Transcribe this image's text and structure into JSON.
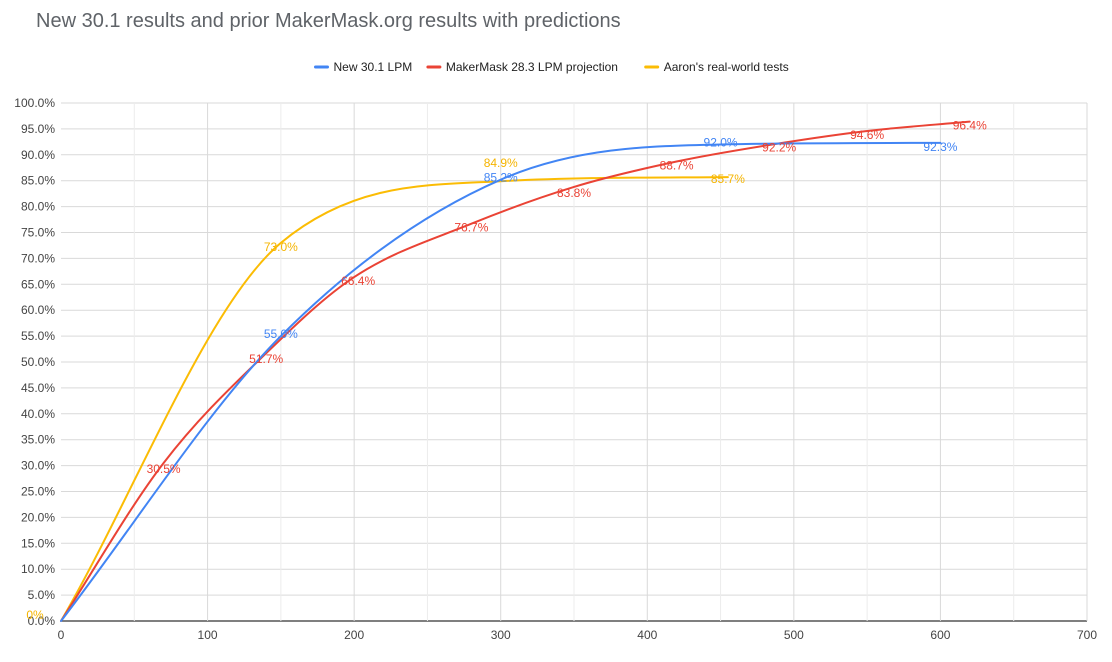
{
  "chart_data": {
    "type": "line",
    "title": "New 30.1 results and prior MakerMask.org results with predictions",
    "xlabel": "",
    "ylabel": "",
    "xlim": [
      0,
      700
    ],
    "ylim": [
      0,
      100
    ],
    "x_ticks": [
      "0",
      "100",
      "200",
      "300",
      "400",
      "500",
      "600",
      "700"
    ],
    "y_ticks": [
      "0.0%",
      "5.0%",
      "10.0%",
      "15.0%",
      "20.0%",
      "25.0%",
      "30.0%",
      "35.0%",
      "40.0%",
      "45.0%",
      "50.0%",
      "55.0%",
      "60.0%",
      "65.0%",
      "70.0%",
      "75.0%",
      "80.0%",
      "85.0%",
      "90.0%",
      "95.0%",
      "100.0%"
    ],
    "grid": true,
    "smooth": true,
    "legend_position": "top",
    "series": [
      {
        "name": "New 30.1 LPM",
        "color": "#4285f4",
        "label_color": "#4285f4",
        "x": [
          0,
          150,
          300,
          450,
          600
        ],
        "y": [
          0,
          55.0,
          85.2,
          92.0,
          92.3
        ],
        "labels": [
          "",
          "55.0%",
          "85.2%",
          "92.0%",
          "92.3%"
        ]
      },
      {
        "name": "MakerMask 28.3 LPM projection",
        "color": "#ea4335",
        "label_color": "#ea4335",
        "x": [
          0,
          70,
          140,
          200,
          280,
          350,
          420,
          490,
          550,
          620
        ],
        "y": [
          0,
          30.5,
          51.7,
          66.4,
          76.7,
          83.8,
          88.7,
          92.2,
          94.6,
          96.4
        ],
        "labels": [
          "",
          "30.5%",
          "51.7%",
          "66.4%",
          "76.7%",
          "83.8%",
          "88.7%",
          "92.2%",
          "94.6%",
          "96.4%"
        ]
      },
      {
        "name": "Aaron's real-world tests",
        "color": "#fbbc04",
        "label_color": "#f5b400",
        "x": [
          0,
          150,
          300,
          455
        ],
        "y": [
          0,
          73.0,
          84.9,
          85.7
        ],
        "labels": [
          "0%",
          "73.0%",
          "84.9%",
          "85.7%"
        ]
      }
    ]
  }
}
